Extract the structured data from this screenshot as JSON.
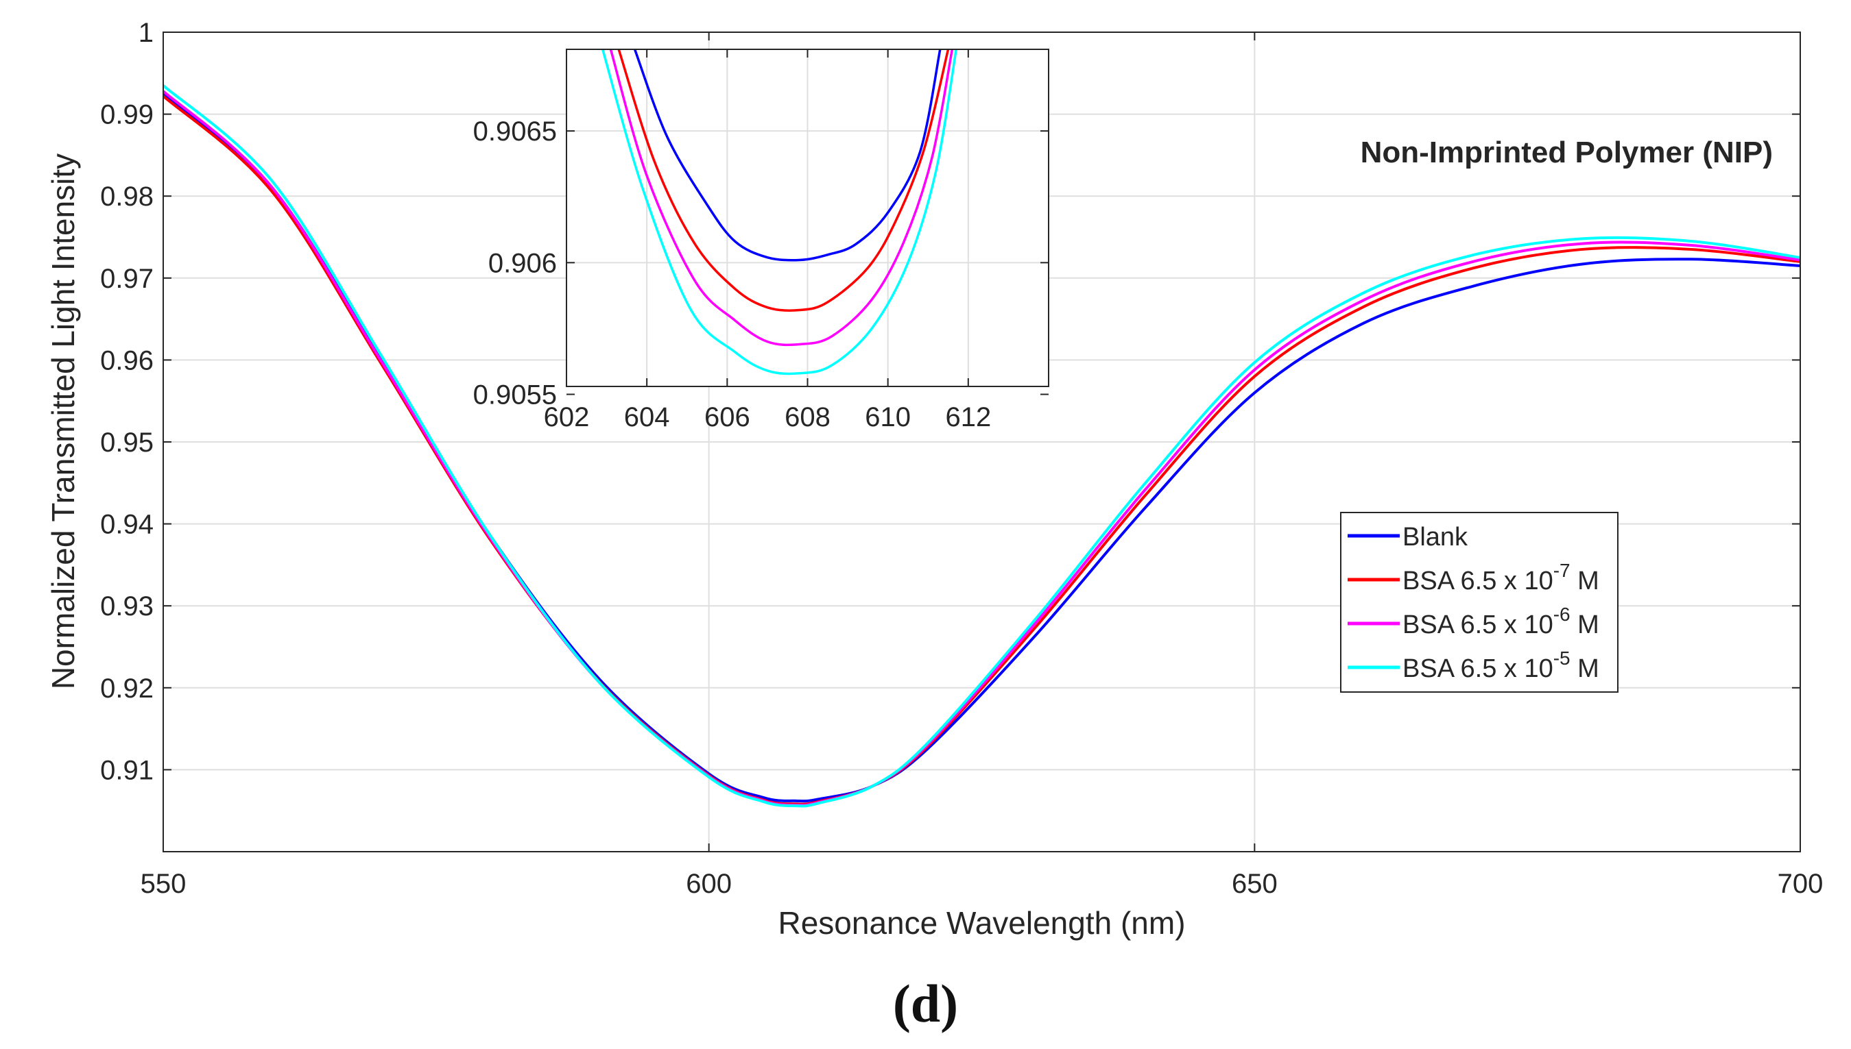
{
  "panel_label": "(d)",
  "chart_data": [
    {
      "id": "main",
      "type": "line",
      "title": "Non-Imprinted Polymer (NIP)",
      "xlabel": "Resonance Wavelength (nm)",
      "ylabel": "Normalized Transmitted Light Intensity",
      "xlim": [
        550,
        700
      ],
      "ylim": [
        0.9,
        1.0
      ],
      "xticks": [
        550,
        600,
        650,
        700
      ],
      "xtick_labels": [
        "550",
        "600",
        "650",
        "700"
      ],
      "yticks": [
        0.91,
        0.92,
        0.93,
        0.94,
        0.95,
        0.96,
        0.97,
        0.98,
        0.99,
        1.0
      ],
      "ytick_labels": [
        "0.91",
        "0.92",
        "0.93",
        "0.94",
        "0.95",
        "0.96",
        "0.97",
        "0.98",
        "0.99",
        "1"
      ],
      "grid": true,
      "legend_position": "lower-right",
      "series": [
        {
          "name": "Blank",
          "legend_prefix": "Blank",
          "legend_exponent": "",
          "legend_suffix": "",
          "color": "#0000ff",
          "x": [
            550,
            560,
            570,
            580,
            590,
            600,
            605,
            608,
            610,
            615,
            620,
            630,
            640,
            650,
            660,
            670,
            680,
            690,
            700
          ],
          "y": [
            0.9925,
            0.981,
            0.96,
            0.9385,
            0.921,
            0.9095,
            0.9066,
            0.9062,
            0.9064,
            0.908,
            0.9125,
            0.9265,
            0.942,
            0.956,
            0.9645,
            0.969,
            0.9717,
            0.9723,
            0.9715
          ]
        },
        {
          "name": "BSA 6.5 x 10-7 M",
          "legend_prefix": "BSA 6.5 x 10",
          "legend_exponent": "-7",
          "legend_suffix": " M",
          "color": "#ff0000",
          "x": [
            550,
            560,
            570,
            580,
            590,
            600,
            605,
            608,
            610,
            615,
            620,
            630,
            640,
            650,
            660,
            670,
            680,
            690,
            700
          ],
          "y": [
            0.9922,
            0.9805,
            0.9595,
            0.938,
            0.9207,
            0.9093,
            0.9063,
            0.90582,
            0.9061,
            0.908,
            0.9128,
            0.9275,
            0.9435,
            0.958,
            0.9665,
            0.9712,
            0.9735,
            0.9735,
            0.972
          ]
        },
        {
          "name": "BSA 6.5 x 10-6 M",
          "legend_prefix": "BSA 6.5 x 10",
          "legend_exponent": "-6",
          "legend_suffix": " M",
          "color": "#ff00ff",
          "x": [
            550,
            560,
            570,
            580,
            590,
            600,
            605,
            608,
            610,
            615,
            620,
            630,
            640,
            650,
            660,
            670,
            680,
            690,
            700
          ],
          "y": [
            0.9928,
            0.981,
            0.9598,
            0.9382,
            0.9206,
            0.9092,
            0.9062,
            0.90569,
            0.906,
            0.908,
            0.913,
            0.928,
            0.9442,
            0.9588,
            0.9673,
            0.972,
            0.9742,
            0.974,
            0.9722
          ]
        },
        {
          "name": "BSA 6.5 x 10-5 M",
          "legend_prefix": "BSA 6.5 x 10",
          "legend_exponent": "-5",
          "legend_suffix": " M",
          "color": "#00ffff",
          "x": [
            550,
            560,
            570,
            580,
            590,
            600,
            605,
            608,
            610,
            615,
            620,
            630,
            640,
            650,
            660,
            670,
            680,
            690,
            700
          ],
          "y": [
            0.9935,
            0.9818,
            0.9605,
            0.9385,
            0.9206,
            0.9091,
            0.9061,
            0.90559,
            0.9059,
            0.908,
            0.9132,
            0.9285,
            0.945,
            0.9597,
            0.9682,
            0.9728,
            0.9748,
            0.9745,
            0.9725
          ]
        }
      ]
    },
    {
      "id": "inset",
      "type": "line",
      "title": "",
      "xlim": [
        602,
        614
      ],
      "ylim": [
        0.90553,
        0.90681
      ],
      "xticks": [
        602,
        604,
        606,
        608,
        610,
        612
      ],
      "xtick_labels": [
        "602",
        "604",
        "606",
        "608",
        "610",
        "612"
      ],
      "yticks": [
        0.9055,
        0.906,
        0.9065
      ],
      "ytick_labels": [
        "0.9055",
        "0.906",
        "0.9065"
      ],
      "grid": true,
      "series": [
        {
          "name": "Blank",
          "color": "#0000ff",
          "x": [
            603.7,
            604.5,
            605.5,
            606.2,
            607.0,
            607.8,
            608.5,
            609.2,
            610.0,
            610.8,
            611.3
          ],
          "y": [
            0.90681,
            0.90648,
            0.90622,
            0.90608,
            0.90602,
            0.90601,
            0.90603,
            0.90607,
            0.90619,
            0.90642,
            0.90681
          ]
        },
        {
          "name": "BSA 6.5 x 10-7 M",
          "color": "#ff0000",
          "x": [
            603.3,
            604.2,
            605.2,
            606.2,
            607.0,
            607.8,
            608.5,
            609.5,
            610.2,
            610.9,
            611.5
          ],
          "y": [
            0.90681,
            0.90638,
            0.90607,
            0.9059,
            0.90583,
            0.90582,
            0.90585,
            0.90598,
            0.90616,
            0.90643,
            0.90681
          ]
        },
        {
          "name": "BSA 6.5 x 10-6 M",
          "color": "#ff00ff",
          "x": [
            603.1,
            604.0,
            605.2,
            606.2,
            607.0,
            607.8,
            608.6,
            609.6,
            610.4,
            611.1,
            611.6
          ],
          "y": [
            0.90681,
            0.90633,
            0.90593,
            0.90578,
            0.9057,
            0.90569,
            0.90572,
            0.90586,
            0.90608,
            0.9064,
            0.90681
          ]
        },
        {
          "name": "BSA 6.5 x 10-5 M",
          "color": "#00ffff",
          "x": [
            602.9,
            603.9,
            605.1,
            606.2,
            607.0,
            607.8,
            608.6,
            609.6,
            610.5,
            611.2,
            611.7
          ],
          "y": [
            0.90681,
            0.90628,
            0.90582,
            0.90566,
            0.90559,
            0.90558,
            0.90561,
            0.90575,
            0.906,
            0.90635,
            0.90681
          ]
        }
      ]
    }
  ]
}
